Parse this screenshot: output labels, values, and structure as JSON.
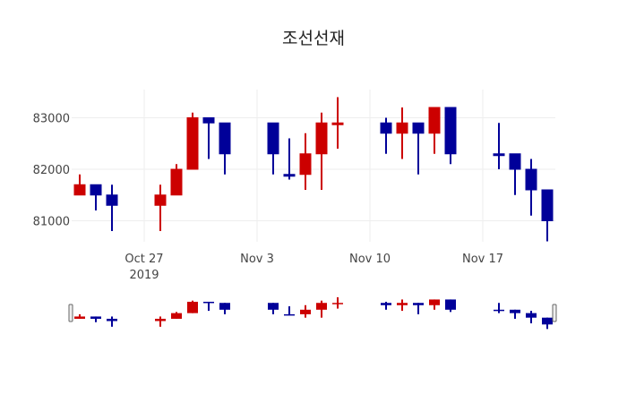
{
  "title": "조선선재",
  "chart_data": {
    "type": "candlestick",
    "title": "조선선재",
    "xlabel": "",
    "ylabel": "",
    "ylim": [
      80550,
      83550
    ],
    "y_ticks": [
      81000,
      82000,
      83000
    ],
    "y_tick_labels": [
      "81000",
      "82000",
      "83000"
    ],
    "x_ticks": [
      "2019-10-27",
      "2019-11-03",
      "2019-11-10",
      "2019-11-17"
    ],
    "x_tick_labels": [
      [
        "Oct 27",
        "2019"
      ],
      [
        "Nov 3"
      ],
      [
        "Nov 10"
      ],
      [
        "Nov 17"
      ]
    ],
    "grid": true,
    "legend": false,
    "rangeslider": true,
    "increasing_color": "#cc0000",
    "decreasing_color": "#000099",
    "candles": [
      {
        "date": "2019-10-23",
        "open": 81500,
        "high": 81900,
        "low": 81500,
        "close": 81700
      },
      {
        "date": "2019-10-24",
        "open": 81700,
        "high": 81700,
        "low": 81200,
        "close": 81500
      },
      {
        "date": "2019-10-25",
        "open": 81500,
        "high": 81700,
        "low": 80800,
        "close": 81300
      },
      {
        "date": "2019-10-28",
        "open": 81300,
        "high": 81700,
        "low": 80800,
        "close": 81500
      },
      {
        "date": "2019-10-29",
        "open": 81500,
        "high": 82100,
        "low": 81500,
        "close": 82000
      },
      {
        "date": "2019-10-30",
        "open": 82000,
        "high": 83100,
        "low": 82000,
        "close": 83000
      },
      {
        "date": "2019-10-31",
        "open": 83000,
        "high": 83000,
        "low": 82200,
        "close": 82900
      },
      {
        "date": "2019-11-01",
        "open": 82900,
        "high": 82900,
        "low": 81900,
        "close": 82300
      },
      {
        "date": "2019-11-04",
        "open": 82900,
        "high": 82900,
        "low": 81900,
        "close": 82300
      },
      {
        "date": "2019-11-05",
        "open": 81900,
        "high": 82600,
        "low": 81800,
        "close": 81900,
        "dir": "down"
      },
      {
        "date": "2019-11-06",
        "open": 81900,
        "high": 82700,
        "low": 81600,
        "close": 82300
      },
      {
        "date": "2019-11-07",
        "open": 82300,
        "high": 83100,
        "low": 81600,
        "close": 82900
      },
      {
        "date": "2019-11-08",
        "open": 82900,
        "high": 83400,
        "low": 82400,
        "close": 82900,
        "dir": "up"
      },
      {
        "date": "2019-11-11",
        "open": 82900,
        "high": 83000,
        "low": 82300,
        "close": 82700
      },
      {
        "date": "2019-11-12",
        "open": 82700,
        "high": 83200,
        "low": 82200,
        "close": 82900
      },
      {
        "date": "2019-11-13",
        "open": 82900,
        "high": 82900,
        "low": 81900,
        "close": 82700
      },
      {
        "date": "2019-11-14",
        "open": 82700,
        "high": 83200,
        "low": 82300,
        "close": 83200
      },
      {
        "date": "2019-11-15",
        "open": 83200,
        "high": 83200,
        "low": 82100,
        "close": 82300
      },
      {
        "date": "2019-11-18",
        "open": 82300,
        "high": 82900,
        "low": 82000,
        "close": 82300,
        "dir": "down"
      },
      {
        "date": "2019-11-19",
        "open": 82300,
        "high": 82300,
        "low": 81500,
        "close": 82000
      },
      {
        "date": "2019-11-20",
        "open": 82000,
        "high": 82200,
        "low": 81100,
        "close": 81600
      },
      {
        "date": "2019-11-21",
        "open": 81600,
        "high": 81600,
        "low": 80600,
        "close": 81000
      }
    ]
  }
}
